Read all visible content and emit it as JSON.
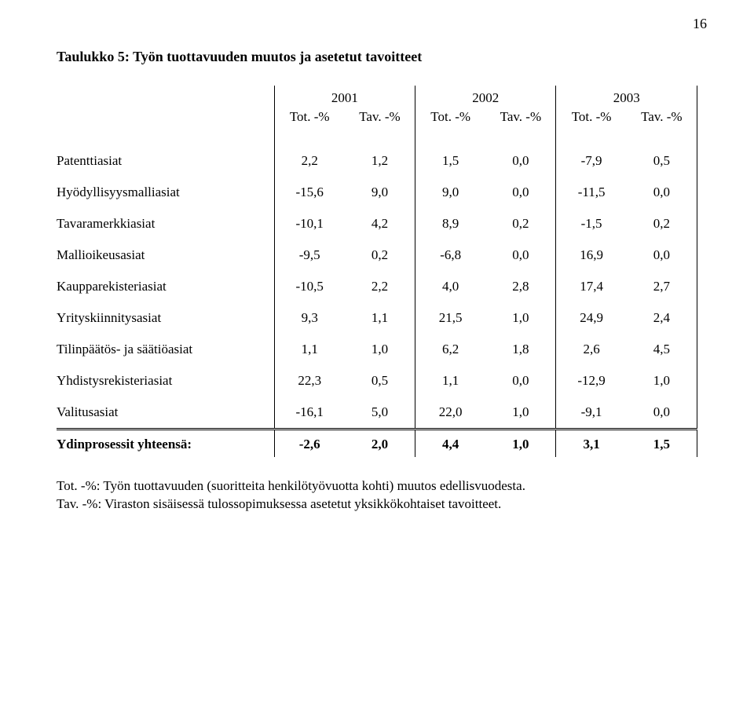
{
  "page_number": "16",
  "caption": "Taulukko 5:  Työn tuottavuuden muutos ja asetetut tavoitteet",
  "header": {
    "years": [
      "2001",
      "2002",
      "2003"
    ],
    "sub": [
      "Tot. -%",
      "Tav. -%",
      "Tot. -%",
      "Tav. -%",
      "Tot. -%",
      "Tav. -%"
    ]
  },
  "rows": [
    {
      "label": "Patenttiasiat",
      "v": [
        "2,2",
        "1,2",
        "1,5",
        "0,0",
        "-7,9",
        "0,5"
      ]
    },
    {
      "label": "Hyödyllisyysmalliasiat",
      "v": [
        "-15,6",
        "9,0",
        "9,0",
        "0,0",
        "-11,5",
        "0,0"
      ]
    },
    {
      "label": "Tavaramerkkiasiat",
      "v": [
        "-10,1",
        "4,2",
        "8,9",
        "0,2",
        "-1,5",
        "0,2"
      ]
    },
    {
      "label": "Mallioikeusasiat",
      "v": [
        "-9,5",
        "0,2",
        "-6,8",
        "0,0",
        "16,9",
        "0,0"
      ]
    },
    {
      "label": "Kaupparekisteriasiat",
      "v": [
        "-10,5",
        "2,2",
        "4,0",
        "2,8",
        "17,4",
        "2,7"
      ]
    },
    {
      "label": "Yrityskiinnitysasiat",
      "v": [
        "9,3",
        "1,1",
        "21,5",
        "1,0",
        "24,9",
        "2,4"
      ]
    },
    {
      "label": "Tilinpäätös- ja säätiöasiat",
      "v": [
        "1,1",
        "1,0",
        "6,2",
        "1,8",
        "2,6",
        "4,5"
      ]
    },
    {
      "label": "Yhdistysrekisteriasiat",
      "v": [
        "22,3",
        "0,5",
        "1,1",
        "0,0",
        "-12,9",
        "1,0"
      ]
    },
    {
      "label": "Valitusasiat",
      "v": [
        "-16,1",
        "5,0",
        "22,0",
        "1,0",
        "-9,1",
        "0,0"
      ]
    }
  ],
  "totals": {
    "label": "Ydinprosessit yhteensä:",
    "v": [
      "-2,6",
      "2,0",
      "4,4",
      "1,0",
      "3,1",
      "1,5"
    ]
  },
  "footnotes": [
    "Tot. -%: Työn tuottavuuden (suoritteita henkilötyövuotta kohti) muutos edellisvuodesta.",
    "Tav. -%: Viraston sisäisessä tulossopimuksessa asetetut yksikkökohtaiset tavoitteet."
  ]
}
